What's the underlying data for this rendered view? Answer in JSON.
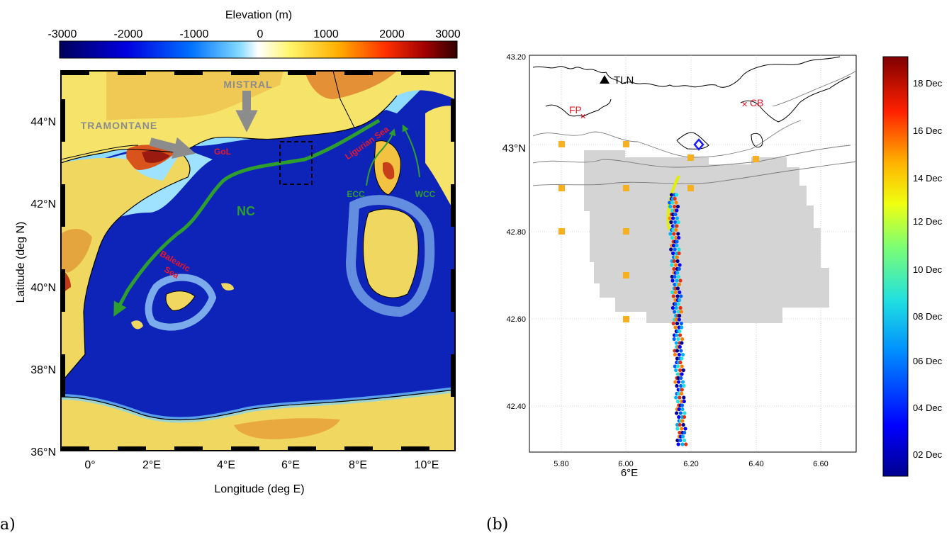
{
  "panel_a": {
    "label": "a)",
    "colorbar": {
      "title": "Elevation (m)",
      "ticks": [
        "-3000",
        "-2000",
        "-1000",
        "0",
        "1000",
        "2000",
        "3000"
      ],
      "colors": [
        "#00007f",
        "#0000ff",
        "#0080ff",
        "#ffffff",
        "#ffff66",
        "#ff8000",
        "#ff0000",
        "#7f0000"
      ]
    },
    "xlabel": "Longitude (deg E)",
    "ylabel": "Latitude (deg N)",
    "xticks": [
      "0°",
      "2°E",
      "4°E",
      "6°E",
      "8°E",
      "10°E"
    ],
    "yticks": [
      "36°N",
      "38°N",
      "40°N",
      "42°N",
      "44°N"
    ],
    "annotations": {
      "mistral": "MISTRAL",
      "tramontane": "TRAMONTANE",
      "gol": "GoL",
      "ligurian": "Ligurian Sea",
      "ecc": "ECC",
      "wcc": "WCC",
      "nc": "NC",
      "balearic_1": "Balearic",
      "balearic_2": "Sea"
    },
    "colors": {
      "current": "#2e9e2e",
      "region_label": "#e8182c",
      "arrow": "#8c8c8c"
    }
  },
  "panel_b": {
    "label": "(b)",
    "xticks": [
      "5.80",
      "6.00",
      "6.20",
      "6.40",
      "6.60"
    ],
    "yticks_labeled": [
      "43.20",
      "43°N",
      "42.80",
      "42.60",
      "42.40"
    ],
    "x_axis_label": "6°E",
    "stations": {
      "tln": "TLN",
      "fp": "FP",
      "cb": "CB"
    },
    "colorbar_ticks": [
      "18 Dec",
      "16 Dec",
      "14 Dec",
      "12 Dec",
      "10 Dec",
      "08 Dec",
      "06 Dec",
      "04 Dec",
      "02 Dec"
    ],
    "colors": {
      "shaded_domain": "#d4d4d4",
      "grid_point": "#f7b020",
      "station_marker": "#e8182c",
      "tln_marker": "#000000",
      "diamond": "#1a1aff"
    }
  }
}
